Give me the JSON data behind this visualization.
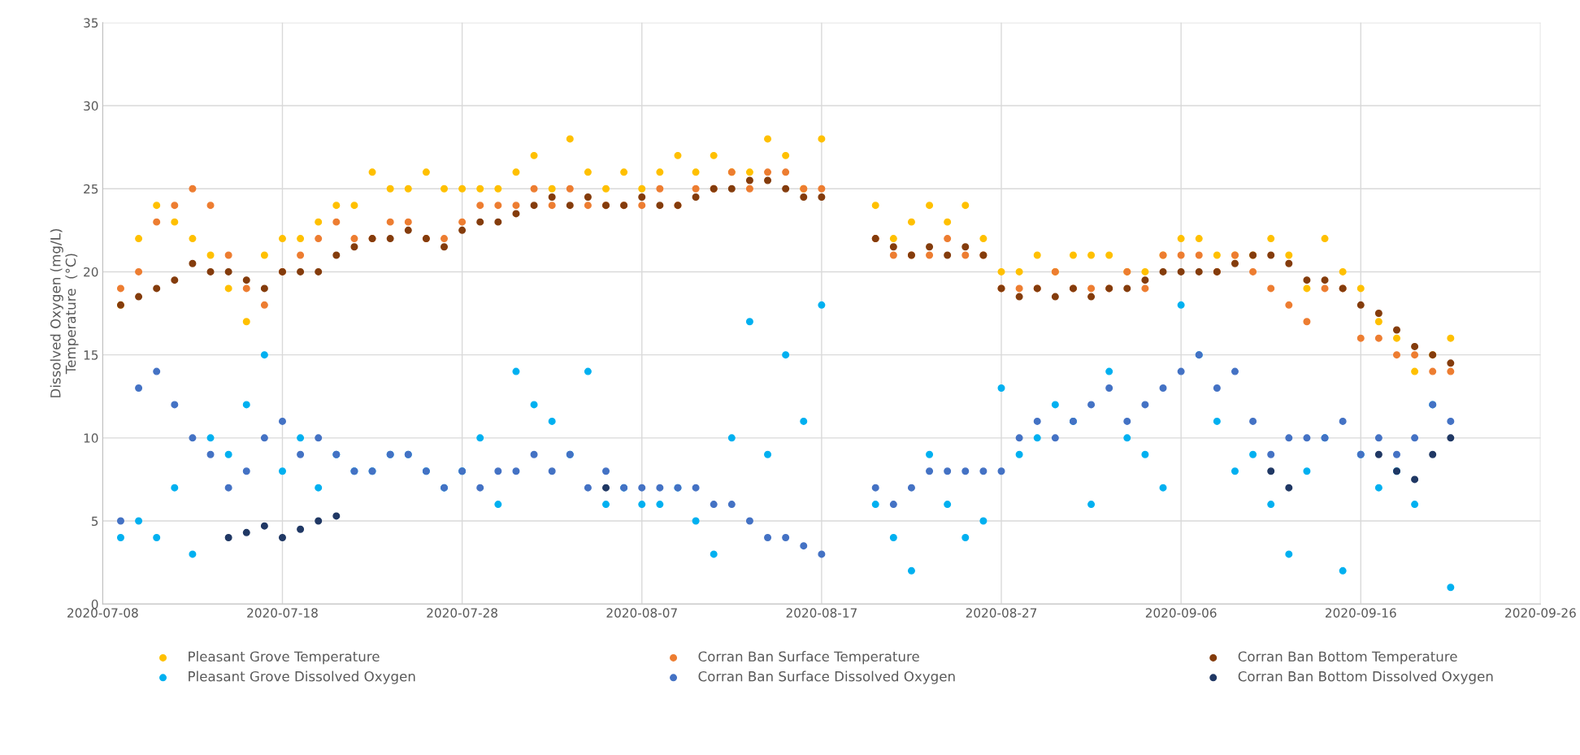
{
  "chart_data": {
    "type": "scatter",
    "ylabel": "Dissolved Oxygen (mg/L)\nTemperature  (°C)",
    "x": [
      "2020-07-09",
      "2020-07-10",
      "2020-07-11",
      "2020-07-12",
      "2020-07-13",
      "2020-07-14",
      "2020-07-15",
      "2020-07-16",
      "2020-07-17",
      "2020-07-18",
      "2020-07-19",
      "2020-07-20",
      "2020-07-21",
      "2020-07-22",
      "2020-07-23",
      "2020-07-24",
      "2020-07-25",
      "2020-07-26",
      "2020-07-27",
      "2020-07-28",
      "2020-07-29",
      "2020-07-30",
      "2020-07-31",
      "2020-08-01",
      "2020-08-02",
      "2020-08-03",
      "2020-08-04",
      "2020-08-05",
      "2020-08-06",
      "2020-08-07",
      "2020-08-08",
      "2020-08-09",
      "2020-08-10",
      "2020-08-11",
      "2020-08-12",
      "2020-08-13",
      "2020-08-14",
      "2020-08-15",
      "2020-08-16",
      "2020-08-17",
      "2020-08-20",
      "2020-08-21",
      "2020-08-22",
      "2020-08-23",
      "2020-08-24",
      "2020-08-25",
      "2020-08-26",
      "2020-08-27",
      "2020-08-28",
      "2020-08-29",
      "2020-08-30",
      "2020-08-31",
      "2020-09-01",
      "2020-09-02",
      "2020-09-03",
      "2020-09-04",
      "2020-09-05",
      "2020-09-06",
      "2020-09-07",
      "2020-09-08",
      "2020-09-09",
      "2020-09-10",
      "2020-09-11",
      "2020-09-12",
      "2020-09-13",
      "2020-09-14",
      "2020-09-15",
      "2020-09-16",
      "2020-09-17",
      "2020-09-18",
      "2020-09-19",
      "2020-09-20",
      "2020-09-21"
    ],
    "series": [
      {
        "name": "Pleasant Grove Temperature",
        "color": "#ffc000",
        "values": [
          18,
          22,
          24,
          23,
          22,
          21,
          19,
          17,
          21,
          22,
          22,
          23,
          24,
          24,
          26,
          25,
          25,
          26,
          25,
          25,
          25,
          25,
          26,
          27,
          25,
          28,
          26,
          25,
          26,
          25,
          26,
          27,
          26,
          27,
          26,
          26,
          28,
          27,
          25,
          28,
          24,
          22,
          23,
          24,
          23,
          24,
          22,
          20,
          20,
          21,
          20,
          21,
          21,
          21,
          20,
          20,
          21,
          22,
          22,
          21,
          21,
          21,
          22,
          21,
          19,
          22,
          20,
          19,
          17,
          16,
          14,
          15,
          16
        ]
      },
      {
        "name": "Corran Ban Surface Temperature",
        "color": "#ed7d31",
        "values": [
          19,
          20,
          23,
          24,
          25,
          24,
          21,
          19,
          18,
          20,
          21,
          22,
          23,
          22,
          22,
          23,
          23,
          22,
          22,
          23,
          24,
          24,
          24,
          25,
          24,
          25,
          24,
          24,
          24,
          24,
          25,
          24,
          25,
          25,
          26,
          25,
          26,
          26,
          25,
          25,
          22,
          21,
          21,
          21,
          22,
          21,
          21,
          19,
          19,
          19,
          20,
          19,
          19,
          19,
          20,
          19,
          21,
          21,
          21,
          20,
          21,
          20,
          19,
          18,
          17,
          19,
          19,
          16,
          16,
          15,
          15,
          14,
          14
        ]
      },
      {
        "name": "Corran Ban Bottom Temperature",
        "color": "#843c0c",
        "values": [
          18,
          18.5,
          19,
          19.5,
          20.5,
          20,
          20,
          19.5,
          19,
          20,
          20,
          20,
          21,
          21.5,
          22,
          22,
          22.5,
          22,
          21.5,
          22.5,
          23,
          23,
          23.5,
          24,
          24.5,
          24,
          24.5,
          24,
          24,
          24.5,
          24,
          24,
          24.5,
          25,
          25,
          25.5,
          25.5,
          25,
          24.5,
          24.5,
          22,
          21.5,
          21,
          21.5,
          21,
          21.5,
          21,
          19,
          18.5,
          19,
          18.5,
          19,
          18.5,
          19,
          19,
          19.5,
          20,
          20,
          20,
          20,
          20.5,
          21,
          21,
          20.5,
          19.5,
          19.5,
          19,
          18,
          17.5,
          16.5,
          15.5,
          15,
          14.5
        ]
      },
      {
        "name": "Pleasant Grove Dissolved Oxygen",
        "color": "#00b0f0",
        "values": [
          4,
          5,
          4,
          7,
          3,
          10,
          9,
          12,
          15,
          8,
          10,
          7,
          9,
          8,
          8,
          9,
          9,
          8,
          7,
          8,
          10,
          6,
          14,
          12,
          11,
          9,
          14,
          6,
          7,
          6,
          6,
          7,
          5,
          3,
          10,
          17,
          9,
          15,
          11,
          18,
          6,
          4,
          2,
          9,
          6,
          4,
          5,
          13,
          9,
          10,
          12,
          11,
          6,
          14,
          10,
          9,
          7,
          18,
          15,
          11,
          8,
          9,
          6,
          3,
          8,
          10,
          2,
          9,
          7,
          8,
          6,
          12,
          1
        ]
      },
      {
        "name": "Corran Ban Surface Dissolved Oxygen",
        "color": "#4472c4",
        "values": [
          5,
          13,
          14,
          12,
          10,
          9,
          7,
          8,
          10,
          11,
          9,
          10,
          9,
          8,
          8,
          9,
          9,
          8,
          7,
          8,
          7,
          8,
          8,
          9,
          8,
          9,
          7,
          8,
          7,
          7,
          7,
          7,
          7,
          6,
          6,
          5,
          4,
          4,
          3.5,
          3,
          7,
          6,
          7,
          8,
          8,
          8,
          8,
          8,
          10,
          11,
          10,
          11,
          12,
          13,
          11,
          12,
          13,
          14,
          15,
          13,
          14,
          11,
          9,
          10,
          10,
          10,
          11,
          9,
          10,
          9,
          10,
          12,
          11
        ]
      },
      {
        "name": "Corran Ban Bottom Dissolved Oxygen",
        "color": "#203864",
        "x": [
          "2020-07-15",
          "2020-07-16",
          "2020-07-17",
          "2020-07-18",
          "2020-07-19",
          "2020-07-20",
          "2020-07-21",
          "2020-08-05",
          "2020-09-11",
          "2020-09-12",
          "2020-09-17",
          "2020-09-18",
          "2020-09-19",
          "2020-09-20",
          "2020-09-21"
        ],
        "values": [
          4,
          4.3,
          4.7,
          4,
          4.5,
          5,
          5.3,
          7,
          8,
          7,
          9,
          8,
          7.5,
          9,
          10
        ]
      }
    ],
    "xlim": [
      "2020-07-08",
      "2020-09-26"
    ],
    "xticks": [
      "2020-07-08",
      "2020-07-18",
      "2020-07-28",
      "2020-08-07",
      "2020-08-17",
      "2020-08-27",
      "2020-09-06",
      "2020-09-16",
      "2020-09-26"
    ],
    "ylim": [
      0,
      35
    ],
    "yticks": [
      0,
      5,
      10,
      15,
      20,
      25,
      30,
      35
    ],
    "grid": true,
    "legend": "bottom",
    "marker": "circle"
  }
}
